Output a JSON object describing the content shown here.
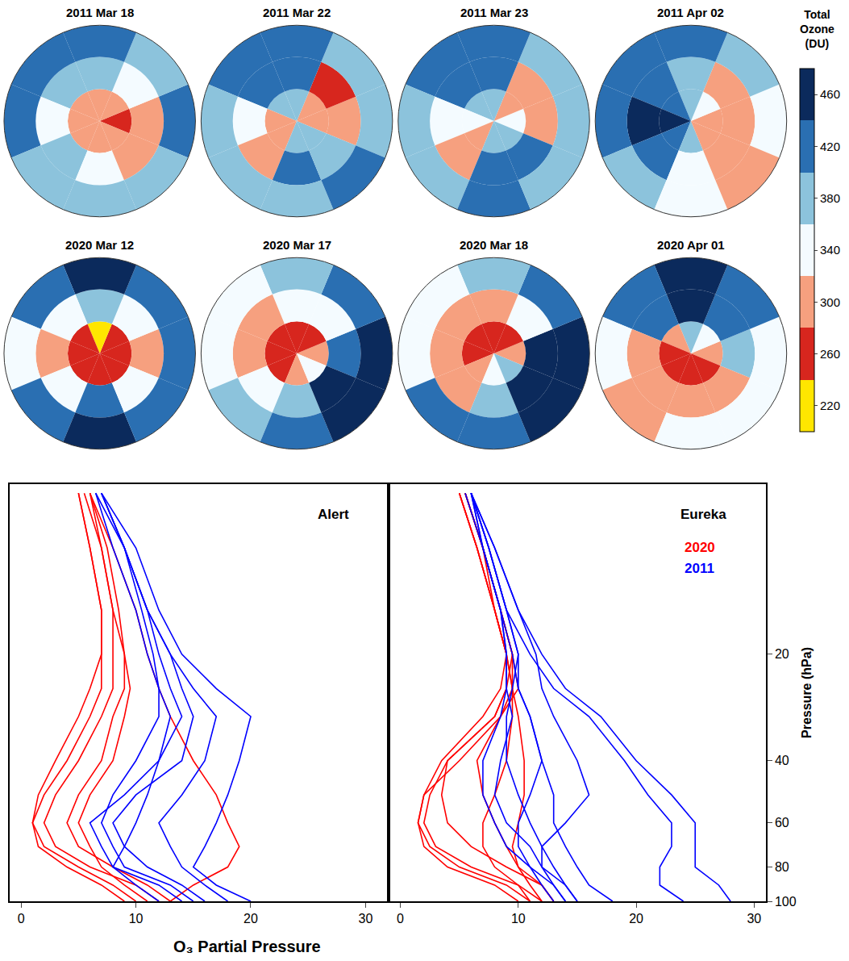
{
  "chart_data": [
    {
      "type": "polar_heatmap",
      "sectors_deg": [
        0,
        45,
        90,
        135,
        180,
        225,
        270,
        315
      ],
      "colorbar": {
        "title": "Total Ozone (DU)",
        "clim": [
          200,
          480
        ],
        "ticks": [
          220,
          260,
          300,
          340,
          380,
          420,
          460
        ],
        "colors": [
          "#ffe600",
          "#d7261e",
          "#f6a07f",
          "#f4fbff",
          "#8cc3dc",
          "#2a6fb2",
          "#0b2a5c"
        ]
      },
      "maps": [
        {
          "title": "2011 Mar 18",
          "cells": [
            [
              270,
              290,
              300,
              290,
              280,
              290,
              300,
              280
            ],
            [
              300,
              320,
              360,
              380,
              330,
              360,
              340,
              310
            ],
            [
              400,
              380,
              420,
              430,
              410,
              380,
              390,
              360
            ]
          ]
        },
        {
          "title": "2011 Mar 22",
          "cells": [
            [
              300,
              290,
              360,
              380,
              310,
              300,
              380,
              360
            ],
            [
              280,
              270,
              400,
              420,
              320,
              310,
              410,
              380
            ],
            [
              380,
              360,
              400,
              420,
              360,
              380,
              390,
              400
            ]
          ]
        },
        {
          "title": "2011 Mar 23",
          "cells": [
            [
              320,
              300,
              380,
              360,
              330,
              310,
              360,
              380
            ],
            [
              300,
              280,
              420,
              400,
              340,
              300,
              400,
              410
            ],
            [
              390,
              370,
              410,
              430,
              380,
              360,
              400,
              380
            ]
          ]
        },
        {
          "title": "2011 Apr 02",
          "cells": [
            [
              290,
              320,
              380,
              420,
              440,
              420,
              360,
              300
            ],
            [
              280,
              300,
              360,
              430,
              450,
              400,
              330,
              290
            ],
            [
              330,
              360,
              400,
              430,
              420,
              380,
              350,
              300
            ]
          ]
        },
        {
          "title": "2020 Mar 12",
          "cells": [
            [
              250,
              240,
              230,
              250,
              260,
              260,
              250,
              250
            ],
            [
              300,
              330,
              380,
              330,
              290,
              350,
              420,
              340
            ],
            [
              400,
              420,
              440,
              400,
              340,
              430,
              460,
              420
            ]
          ]
        },
        {
          "title": "2020 Mar 17",
          "cells": [
            [
              280,
              260,
              240,
              250,
              250,
              270,
              300,
              330
            ],
            [
              420,
              340,
              320,
              300,
              290,
              320,
              360,
              460
            ],
            [
              460,
              420,
              380,
              330,
              340,
              380,
              420,
              480
            ]
          ]
        },
        {
          "title": "2020 Mar 18",
          "cells": [
            [
              300,
              250,
              240,
              260,
              260,
              280,
              320,
              380
            ],
            [
              460,
              340,
              290,
              290,
              280,
              310,
              380,
              480
            ],
            [
              470,
              420,
              360,
              320,
              330,
              400,
              430,
              470
            ]
          ]
        },
        {
          "title": "2020 Apr 01",
          "cells": [
            [
              300,
              340,
              380,
              300,
              260,
              250,
              260,
              270
            ],
            [
              360,
              420,
              460,
              400,
              300,
              280,
              290,
              310
            ],
            [
              330,
              400,
              470,
              420,
              340,
              300,
              340,
              330
            ]
          ]
        }
      ]
    },
    {
      "type": "line",
      "xlabel": "O₃ Partial Pressure",
      "ylabel": "Pressure (hPa)",
      "log": "y",
      "grid": false,
      "ylim": [
        100,
        6.6
      ],
      "yticks": [
        20,
        40,
        60,
        80,
        100
      ],
      "pressure": [
        100,
        90,
        80,
        70,
        60,
        50,
        40,
        30,
        25,
        20,
        15,
        10,
        7
      ],
      "panels": [
        {
          "title": "Alert",
          "xlim": [
            -1,
            32
          ],
          "xticks": [
            0,
            10,
            20,
            30
          ],
          "tick_labels": "x",
          "series": [
            {
              "name": "2020",
              "color": "#ff0000",
              "profiles": [
                [
                  10,
                  8,
                  5,
                  2,
                  1,
                  2,
                  4,
                  6,
                  7,
                  7,
                  7,
                  6,
                  5
                ],
                [
                  12,
                  10,
                  6,
                  3,
                  2,
                  3,
                  5,
                  7,
                  8,
                  8,
                  8,
                  7,
                  5.5
                ],
                [
                  9,
                  7,
                  4,
                  1.5,
                  1,
                  1.5,
                  3,
                  5,
                  6,
                  7,
                  7,
                  6,
                  5
                ],
                [
                  13,
                  11,
                  8,
                  5,
                  4,
                  5,
                  7,
                  8,
                  9,
                  9,
                  8,
                  7,
                  6
                ],
                [
                  13,
                  15,
                  18,
                  19,
                  18,
                  17,
                  15,
                  13,
                  12,
                  11,
                  10,
                  8,
                  6
                ],
                [
                  11,
                  9,
                  7,
                  6,
                  5,
                  6,
                  8,
                  9,
                  9.5,
                  9,
                  8.5,
                  7.5,
                  6
                ]
              ]
            },
            {
              "name": "2011",
              "color": "#0000ff",
              "profiles": [
                [
                  20,
                  17,
                  15,
                  16,
                  17,
                  18,
                  19,
                  20,
                  17,
                  14,
                  12,
                  10,
                  7
                ],
                [
                  14,
                  12,
                  8,
                  7,
                  6,
                  9,
                  12,
                  14,
                  13,
                  12,
                  11,
                  9,
                  7
                ],
                [
                  16,
                  14,
                  11,
                  9,
                  8,
                  10,
                  14,
                  15,
                  14,
                  13,
                  11,
                  9,
                  7
                ],
                [
                  12,
                  10,
                  8,
                  9,
                  10,
                  11,
                  12,
                  13,
                  12,
                  11,
                  10,
                  8,
                  6.5
                ],
                [
                  18,
                  16,
                  14,
                  13,
                  12,
                  14,
                  16,
                  17,
                  15,
                  13,
                  11,
                  9,
                  7
                ],
                [
                  15,
                  13,
                  9,
                  8,
                  7,
                  8,
                  10,
                  12,
                  12,
                  11.5,
                  10.5,
                  9,
                  6.5
                ]
              ]
            }
          ]
        },
        {
          "title": "Eureka",
          "xlim": [
            -1,
            31
          ],
          "xticks": [
            0,
            10,
            20,
            30
          ],
          "legend": "top right",
          "series": [
            {
              "name": "2020",
              "color": "#ff0000",
              "profiles": [
                [
                  11,
                  9,
                  5,
                  2.5,
                  1.5,
                  2,
                  3.5,
                  7,
                  8.5,
                  9,
                  8,
                  6.5,
                  5
                ],
                [
                  12,
                  10,
                  6,
                  3,
                  2,
                  2.5,
                  4,
                  8,
                  9,
                  9,
                  8,
                  6.5,
                  5
                ],
                [
                  10,
                  8,
                  4,
                  2,
                  1.5,
                  2,
                  5,
                  8.5,
                  9.5,
                  9.5,
                  8.5,
                  7,
                  5.5
                ],
                [
                  13,
                  12,
                  9,
                  6,
                  4,
                  3.5,
                  4,
                  8,
                  9,
                  9.5,
                  8.5,
                  7,
                  5.5
                ],
                [
                  12,
                  11,
                  10,
                  9.5,
                  10,
                  10.5,
                  10.5,
                  10,
                  9.5,
                  9,
                  8,
                  7,
                  5.5
                ],
                [
                  11,
                  10,
                  8,
                  7,
                  7,
                  8,
                  9,
                  9.5,
                  9.5,
                  9,
                  8,
                  6.5,
                  5
                ],
                [
                  13,
                  12,
                  10,
                  9,
                  8,
                  7,
                  6.5,
                  8.5,
                  10,
                  9.5,
                  8.5,
                  7,
                  5.5
                ]
              ]
            },
            {
              "name": "2011",
              "color": "#0000ff",
              "profiles": [
                [
                  28,
                  27,
                  25,
                  25,
                  25,
                  23,
                  20,
                  17,
                  14,
                  12,
                  10,
                  8,
                  6
                ],
                [
                  24,
                  22,
                  22,
                  23,
                  23,
                  21,
                  19,
                  16,
                  13,
                  11,
                  9,
                  7.5,
                  6
                ],
                [
                  15,
                  14,
                  12,
                  12,
                  14,
                  16,
                  15,
                  13,
                  12,
                  11.5,
                  10,
                  8,
                  6
                ],
                [
                  14,
                  13,
                  11,
                  9,
                  8,
                  7,
                  7,
                  8.5,
                  9,
                  9,
                  8.5,
                  7,
                  6
                ],
                [
                  15,
                  14,
                  13,
                  12,
                  11,
                  10,
                  9,
                  9,
                  9.5,
                  10,
                  9,
                  7.5,
                  6
                ],
                [
                  13,
                  12,
                  11,
                  10,
                  10,
                  11,
                  12,
                  11,
                  10,
                  9.5,
                  8.5,
                  7,
                  5.5
                ],
                [
                  18,
                  16,
                  15,
                  14,
                  13,
                  13,
                  12,
                  11,
                  10,
                  10,
                  9,
                  7.5,
                  6
                ],
                [
                  14,
                  13,
                  12,
                  11,
                  9,
                  8,
                  8.5,
                  9.5,
                  9,
                  9,
                  8.5,
                  7,
                  6
                ]
              ]
            }
          ]
        }
      ]
    }
  ]
}
